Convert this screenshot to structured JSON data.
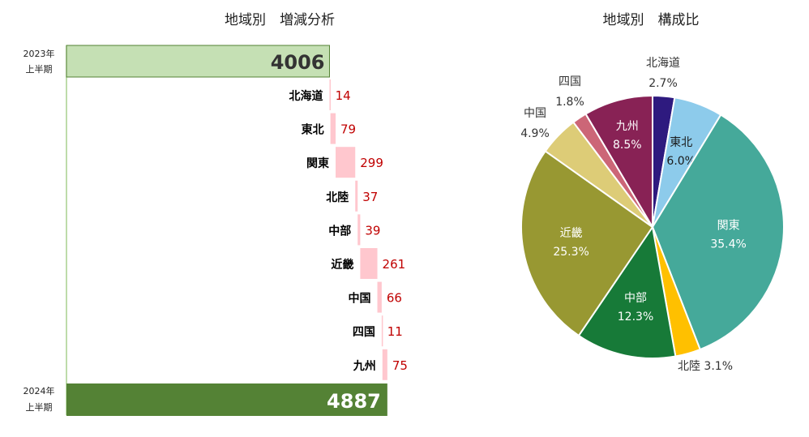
{
  "chart_data": [
    {
      "type": "bar",
      "subtype": "waterfall",
      "title": "地域別　増減分析",
      "start": {
        "label_line1": "2023年",
        "label_line2": "上半期",
        "value": 4006
      },
      "end": {
        "label_line1": "2024年",
        "label_line2": "上半期",
        "value": 4887
      },
      "categories": [
        "北海道",
        "東北",
        "関東",
        "北陸",
        "中部",
        "近畿",
        "中国",
        "四国",
        "九州"
      ],
      "values": [
        14,
        79,
        299,
        37,
        39,
        261,
        66,
        11,
        75
      ],
      "colors": {
        "start": "#C5E0B4",
        "end": "#548235",
        "increase": "#FFC7CE",
        "value_label": "#C00000"
      }
    },
    {
      "type": "pie",
      "title": "地域別　構成比",
      "slices": [
        {
          "name": "北海道",
          "pct": "2.7%",
          "value": 2.7,
          "color": "#2E1A7F"
        },
        {
          "name": "東北",
          "pct": "6.0%",
          "value": 6.0,
          "color": "#8DCBEB"
        },
        {
          "name": "関東",
          "pct": "35.4%",
          "value": 35.4,
          "color": "#45A99A"
        },
        {
          "name": "北陸",
          "pct": "3.1%",
          "value": 3.1,
          "color": "#FFC000"
        },
        {
          "name": "中部",
          "pct": "12.3%",
          "value": 12.3,
          "color": "#177A38"
        },
        {
          "name": "近畿",
          "pct": "25.3%",
          "value": 25.3,
          "color": "#989832"
        },
        {
          "name": "中国",
          "pct": "4.9%",
          "value": 4.9,
          "color": "#DDCC77"
        },
        {
          "name": "四国",
          "pct": "1.8%",
          "value": 1.8,
          "color": "#CC6677"
        },
        {
          "name": "九州",
          "pct": "8.5%",
          "value": 8.5,
          "color": "#882255"
        }
      ]
    }
  ]
}
